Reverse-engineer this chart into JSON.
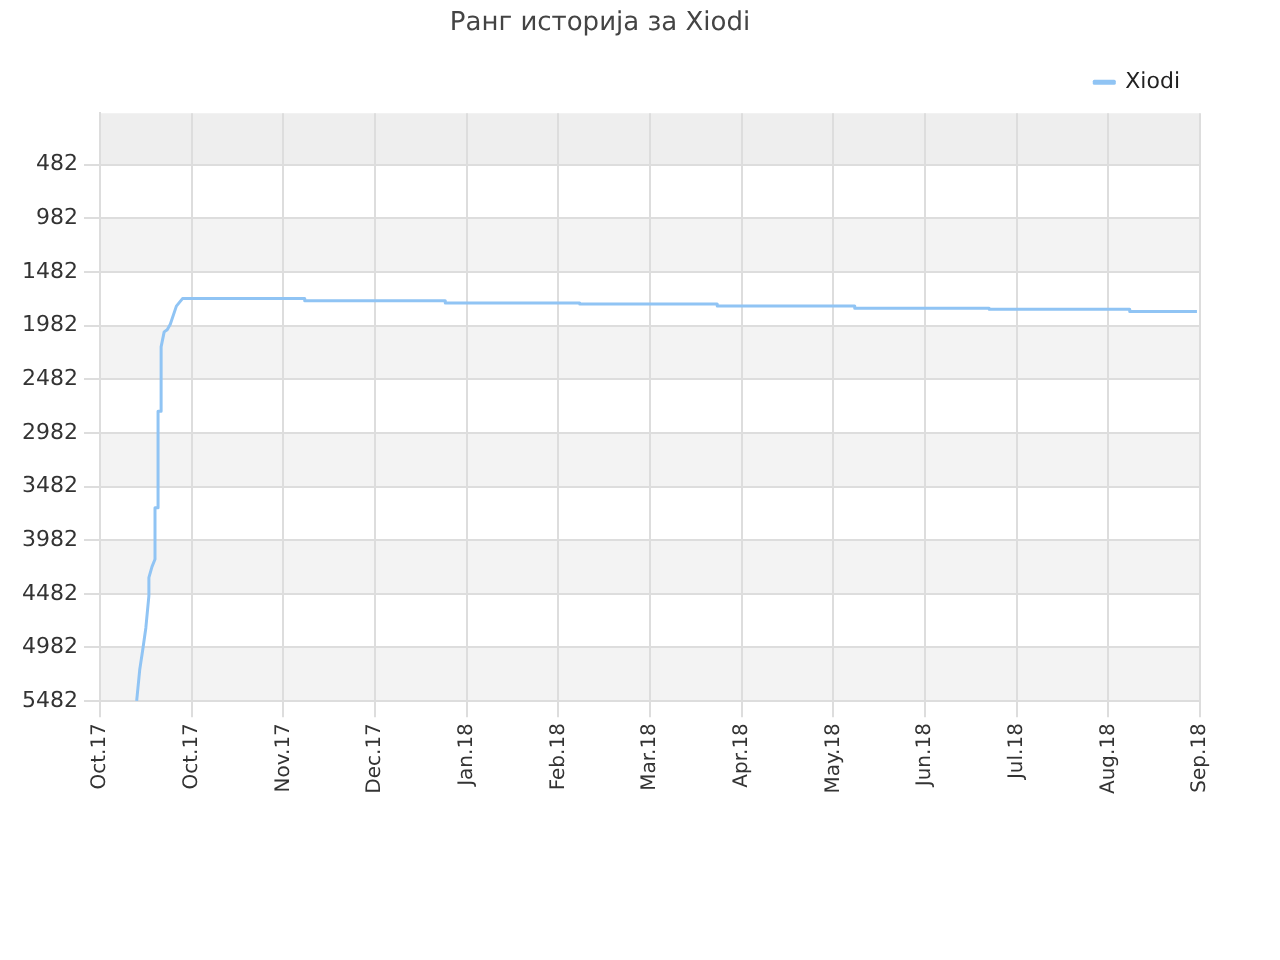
{
  "chart_data": {
    "type": "line",
    "title": "Ранг историја за Xiodi",
    "xlim": [
      "2017-10-01",
      "2018-09-26"
    ],
    "xticks": [
      {
        "value": "2017-10-01",
        "label": "Oct.17"
      },
      {
        "value": "2017-10-31",
        "label": "Oct.17"
      },
      {
        "value": "2017-11-30",
        "label": "Nov.17"
      },
      {
        "value": "2017-12-30",
        "label": "Dec.17"
      },
      {
        "value": "2018-01-29",
        "label": "Jan.18"
      },
      {
        "value": "2018-02-28",
        "label": "Feb.18"
      },
      {
        "value": "2018-03-30",
        "label": "Mar.18"
      },
      {
        "value": "2018-04-29",
        "label": "Apr.18"
      },
      {
        "value": "2018-05-29",
        "label": "May.18"
      },
      {
        "value": "2018-06-28",
        "label": "Jun.18"
      },
      {
        "value": "2018-07-28",
        "label": "Jul.18"
      },
      {
        "value": "2018-08-27",
        "label": "Aug.18"
      },
      {
        "value": "2018-09-26",
        "label": "Sep.18"
      }
    ],
    "ylim": [
      5482,
      2
    ],
    "yticks": [
      482,
      982,
      1482,
      1982,
      2482,
      2982,
      3482,
      3982,
      4482,
      4982,
      5482
    ],
    "grid": true,
    "legend": "top right",
    "marker": "none",
    "line_style": "solid",
    "series": [
      {
        "name": "Xiodi",
        "color": "#90c4f4",
        "x": [
          "2017-10-13",
          "2017-10-14",
          "2017-10-15",
          "2017-10-16",
          "2017-10-17",
          "2017-10-17",
          "2017-10-18",
          "2017-10-19",
          "2017-10-19",
          "2017-10-20",
          "2017-10-20",
          "2017-10-21",
          "2017-10-21",
          "2017-10-22",
          "2017-10-23",
          "2017-10-24",
          "2017-10-26",
          "2017-10-28",
          "2017-12-07",
          "2017-12-07",
          "2018-01-22",
          "2018-01-22",
          "2018-03-07",
          "2018-03-07",
          "2018-04-21",
          "2018-04-21",
          "2018-06-05",
          "2018-06-05",
          "2018-07-19",
          "2018-07-19",
          "2018-09-03",
          "2018-09-03",
          "2018-09-25"
        ],
        "values": [
          5480,
          5190,
          5000,
          4800,
          4500,
          4330,
          4230,
          4160,
          3680,
          3680,
          2780,
          2780,
          2180,
          2040,
          2020,
          1970,
          1800,
          1730,
          1730,
          1750,
          1750,
          1770,
          1770,
          1780,
          1780,
          1800,
          1800,
          1820,
          1820,
          1830,
          1830,
          1850,
          1850
        ]
      }
    ]
  }
}
